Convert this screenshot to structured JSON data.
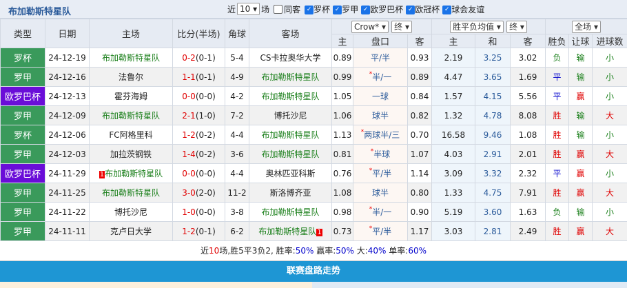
{
  "header": {
    "title": "布加勒斯特星队",
    "near_label": "近",
    "count": "10",
    "count_suffix": "场",
    "same_label": "同客",
    "filters": [
      {
        "label": "罗杯",
        "checked": true
      },
      {
        "label": "罗甲",
        "checked": true
      },
      {
        "label": "欧罗巴杯",
        "checked": true
      },
      {
        "label": "欧冠杯",
        "checked": true
      },
      {
        "label": "球会友谊",
        "checked": true
      }
    ]
  },
  "columns": {
    "type": "类型",
    "date": "日期",
    "home": "主场",
    "score": "比分(半场)",
    "corner": "角球",
    "away": "客场",
    "company": "Crow*",
    "final1": "终",
    "odds_type": "胜平负均值",
    "final2": "终",
    "scope": "全场",
    "ah_home": "主",
    "ah_line": "盘口",
    "ah_away": "客",
    "eu_home": "主",
    "eu_draw": "和",
    "eu_away": "客",
    "result": "胜负",
    "handicap": "让球",
    "goals": "进球数"
  },
  "colors": {
    "league_green": "#3a9a5b",
    "europa_purple": "#6a0dd8",
    "accent_blue": "#1e96d4"
  },
  "rows": [
    {
      "type": "罗杯",
      "league": "green",
      "date": "24-12-19",
      "home": "布加勒斯特星队",
      "home_team": true,
      "score": "0-2",
      "half": "(0-1)",
      "corner": "5-4",
      "away": "CS卡拉奥华大学",
      "away_team": false,
      "o1": "0.89",
      "line": "平/半",
      "star": false,
      "o2": "0.93",
      "e1": "2.19",
      "e2": "3.25",
      "e3": "3.02",
      "res": "负",
      "hc": "输",
      "gl": "小"
    },
    {
      "type": "罗甲",
      "league": "green",
      "date": "24-12-16",
      "home": "法鲁尔",
      "home_team": false,
      "score": "1-1",
      "half": "(0-1)",
      "corner": "4-9",
      "away": "布加勒斯特星队",
      "away_team": true,
      "o1": "0.99",
      "line": "半/一",
      "star": true,
      "o2": "0.89",
      "e1": "4.47",
      "e2": "3.65",
      "e3": "1.69",
      "res": "平",
      "hc": "输",
      "gl": "小"
    },
    {
      "type": "欧罗巴杯",
      "league": "purple",
      "date": "24-12-13",
      "home": "霍芬海姆",
      "home_team": false,
      "score": "0-0",
      "half": "(0-0)",
      "corner": "4-2",
      "away": "布加勒斯特星队",
      "away_team": true,
      "o1": "1.05",
      "line": "一球",
      "star": false,
      "o2": "0.84",
      "e1": "1.57",
      "e2": "4.15",
      "e3": "5.56",
      "res": "平",
      "hc": "赢",
      "gl": "小"
    },
    {
      "type": "罗甲",
      "league": "green",
      "date": "24-12-09",
      "home": "布加勒斯特星队",
      "home_team": true,
      "score": "2-1",
      "half": "(1-0)",
      "corner": "7-2",
      "away": "博托沙尼",
      "away_team": false,
      "o1": "1.06",
      "line": "球半",
      "star": false,
      "o2": "0.82",
      "e1": "1.32",
      "e2": "4.78",
      "e3": "8.08",
      "res": "胜",
      "hc": "输",
      "gl": "大"
    },
    {
      "type": "罗杯",
      "league": "green",
      "date": "24-12-06",
      "home": "FC阿格里科",
      "home_team": false,
      "score": "1-2",
      "half": "(0-2)",
      "corner": "4-4",
      "away": "布加勒斯特星队",
      "away_team": true,
      "o1": "1.13",
      "line": "两球半/三",
      "star": true,
      "o2": "0.70",
      "e1": "16.58",
      "e2": "9.46",
      "e3": "1.08",
      "res": "胜",
      "hc": "输",
      "gl": "小"
    },
    {
      "type": "罗甲",
      "league": "green",
      "date": "24-12-03",
      "home": "加拉茨钢铁",
      "home_team": false,
      "score": "1-4",
      "half": "(0-2)",
      "corner": "3-6",
      "away": "布加勒斯特星队",
      "away_team": true,
      "o1": "0.81",
      "line": "半球",
      "star": true,
      "o2": "1.07",
      "e1": "4.03",
      "e2": "2.91",
      "e3": "2.01",
      "res": "胜",
      "hc": "赢",
      "gl": "大"
    },
    {
      "type": "欧罗巴杯",
      "league": "purple",
      "date": "24-11-29",
      "home": "布加勒斯特星队",
      "home_team": true,
      "home_badge": "1",
      "score": "0-0",
      "half": "(0-0)",
      "corner": "4-4",
      "away": "奥林匹亚科斯",
      "away_team": false,
      "o1": "0.76",
      "line": "平/半",
      "star": true,
      "o2": "1.14",
      "e1": "3.09",
      "e2": "3.32",
      "e3": "2.32",
      "res": "平",
      "hc": "赢",
      "gl": "小"
    },
    {
      "type": "罗甲",
      "league": "green",
      "date": "24-11-25",
      "home": "布加勒斯特星队",
      "home_team": true,
      "score": "3-0",
      "half": "(2-0)",
      "corner": "11-2",
      "away": "斯洛博齐亚",
      "away_team": false,
      "o1": "1.08",
      "line": "球半",
      "star": false,
      "o2": "0.80",
      "e1": "1.33",
      "e2": "4.75",
      "e3": "7.91",
      "res": "胜",
      "hc": "赢",
      "gl": "大"
    },
    {
      "type": "罗甲",
      "league": "green",
      "date": "24-11-22",
      "home": "博托沙尼",
      "home_team": false,
      "score": "1-0",
      "half": "(0-0)",
      "corner": "3-8",
      "away": "布加勒斯特星队",
      "away_team": true,
      "o1": "0.98",
      "line": "半/一",
      "star": true,
      "o2": "0.90",
      "e1": "5.19",
      "e2": "3.60",
      "e3": "1.63",
      "res": "负",
      "hc": "输",
      "gl": "小"
    },
    {
      "type": "罗甲",
      "league": "green",
      "date": "24-11-11",
      "home": "克卢日大学",
      "home_team": false,
      "score": "1-2",
      "half": "(0-1)",
      "corner": "6-2",
      "away": "布加勒斯特星队",
      "away_team": true,
      "away_badge": "1",
      "o1": "0.73",
      "line": "平/半",
      "star": true,
      "o2": "1.17",
      "e1": "3.03",
      "e2": "2.81",
      "e3": "2.49",
      "res": "胜",
      "hc": "赢",
      "gl": "大"
    }
  ],
  "summary": {
    "p1": "近",
    "n": "10",
    "p2": "场,胜5平3负2, 胜率:",
    "win": "50%",
    "p3": " 赢率:",
    "cover": "50%",
    "p4": " 大:",
    "over": "40%",
    "p5": " 单率:",
    "odd": "60%"
  },
  "section_title": "联赛盘路走势"
}
